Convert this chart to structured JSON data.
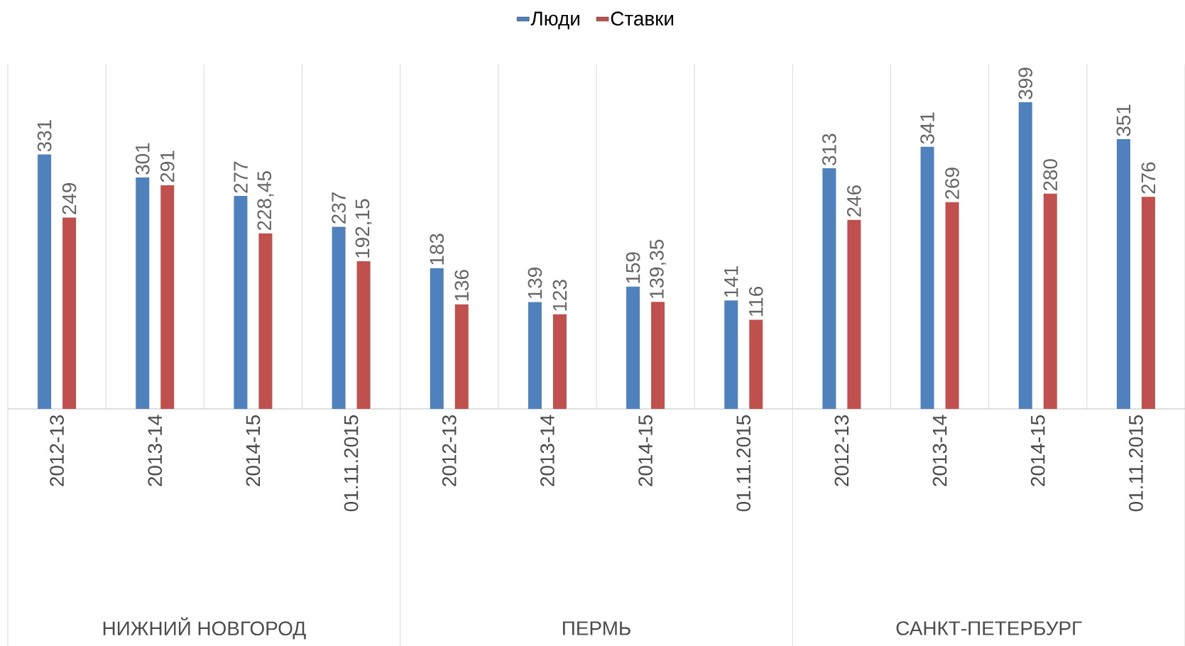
{
  "chart_data": {
    "type": "bar",
    "categories": [
      "2012-13",
      "2013-14",
      "2014-15",
      "01.11.2015",
      "2012-13",
      "2013-14",
      "2014-15",
      "01.11.2015",
      "2012-13",
      "2013-14",
      "2014-15",
      "01.11.2015"
    ],
    "series": [
      {
        "name": "Люди",
        "color": "#4f81bd",
        "values": [
          331,
          301,
          277,
          237,
          183,
          139,
          159,
          141,
          313,
          341,
          399,
          351
        ],
        "value_labels": [
          "331",
          "301",
          "277",
          "237",
          "183",
          "139",
          "159",
          "141",
          "313",
          "341",
          "399",
          "351"
        ]
      },
      {
        "name": "Ставки",
        "color": "#c0504d",
        "values": [
          249,
          291,
          228.45,
          192.15,
          136,
          123,
          139.35,
          116,
          246,
          269,
          280,
          276
        ],
        "value_labels": [
          "249",
          "291",
          "228,45",
          "192,15",
          "136",
          "123",
          "139,35",
          "116",
          "246",
          "269",
          "280",
          "276"
        ]
      }
    ],
    "annotations": [
      "НИЖНИЙ НОВГОРОД",
      "ПЕРМЬ",
      "САНКТ-ПЕТЕРБУРГ"
    ],
    "grid": "x",
    "legend": "top"
  }
}
